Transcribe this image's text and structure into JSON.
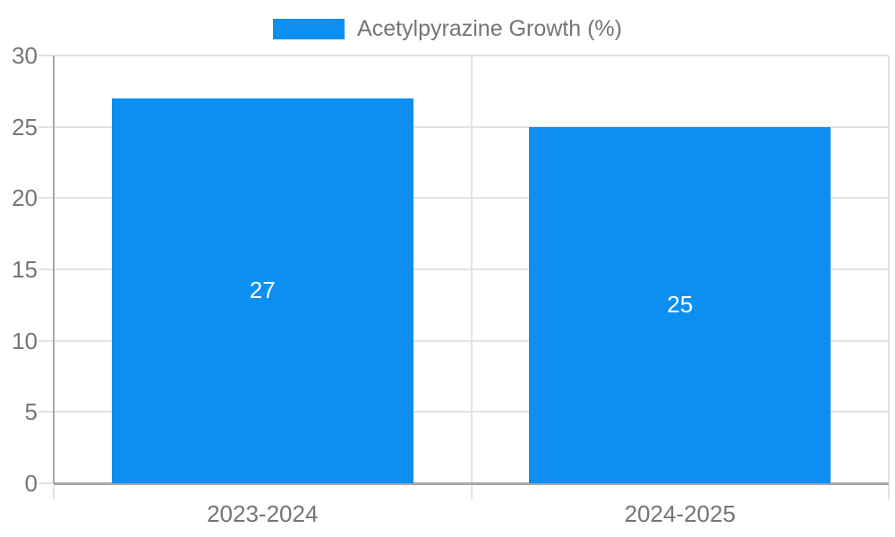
{
  "chart_data": {
    "type": "bar",
    "title": "",
    "categories": [
      "2023-2024",
      "2024-2025"
    ],
    "values": [
      27,
      25
    ],
    "value_labels": [
      "27",
      "25"
    ],
    "xlabel": "",
    "ylabel": "",
    "ylim": [
      0,
      30
    ],
    "yticks": [
      0,
      5,
      10,
      15,
      20,
      25,
      30
    ],
    "grid": true,
    "legend_position": "top-center",
    "legend": [
      {
        "label": "Acetylpyrazine Growth (%)",
        "color": "#0d8ff2"
      }
    ],
    "colors": {
      "bar": "#0d8ff2",
      "grid_line": "#e3e3e3",
      "tick_line": "#e3e3e3",
      "axis_line": "#a6a6a6",
      "label_text": "#757575",
      "value_text": "#ffffff",
      "background": "#ffffff"
    }
  }
}
